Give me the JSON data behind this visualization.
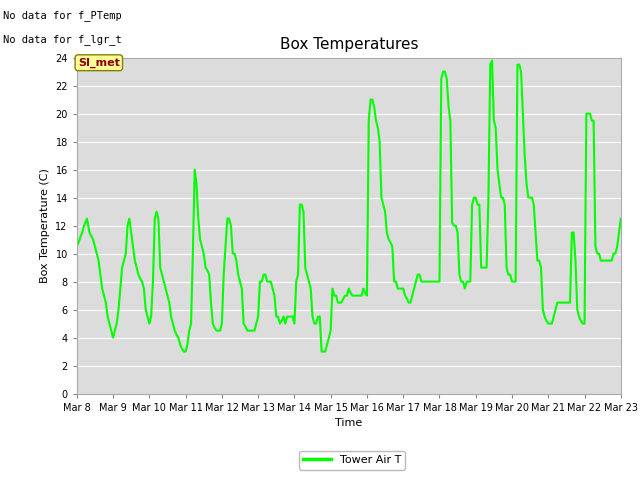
{
  "title": "Box Temperatures",
  "xlabel": "Time",
  "ylabel": "Box Temperature (C)",
  "ylim": [
    0,
    24
  ],
  "xlim": [
    0,
    15
  ],
  "background_color": "#dcdcdc",
  "line_color": "#00ff00",
  "line_width": 1.5,
  "x_tick_labels": [
    "Mar 8",
    "Mar 9",
    "Mar 10",
    "Mar 11",
    "Mar 12",
    "Mar 13",
    "Mar 14",
    "Mar 15",
    "Mar 16",
    "Mar 17",
    "Mar 18",
    "Mar 19",
    "Mar 20",
    "Mar 21",
    "Mar 22",
    "Mar 23"
  ],
  "y_ticks": [
    0,
    2,
    4,
    6,
    8,
    10,
    12,
    14,
    16,
    18,
    20,
    22,
    24
  ],
  "no_data_texts": [
    "No data for f_PTemp",
    "No data for f_lgr_t"
  ],
  "si_met_label": "SI_met",
  "legend_label": "Tower Air T",
  "data_x": [
    0.0,
    0.05,
    0.1,
    0.15,
    0.2,
    0.28,
    0.35,
    0.45,
    0.5,
    0.55,
    0.6,
    0.65,
    0.7,
    0.75,
    0.8,
    0.85,
    0.9,
    0.95,
    1.0,
    1.05,
    1.1,
    1.15,
    1.2,
    1.25,
    1.3,
    1.35,
    1.4,
    1.45,
    1.5,
    1.55,
    1.6,
    1.65,
    1.7,
    1.75,
    1.8,
    1.85,
    1.9,
    1.95,
    2.0,
    2.05,
    2.1,
    2.15,
    2.2,
    2.25,
    2.3,
    2.35,
    2.4,
    2.45,
    2.5,
    2.55,
    2.6,
    2.65,
    2.7,
    2.75,
    2.8,
    2.85,
    2.9,
    2.95,
    3.0,
    3.05,
    3.1,
    3.15,
    3.2,
    3.25,
    3.3,
    3.35,
    3.4,
    3.45,
    3.5,
    3.55,
    3.6,
    3.65,
    3.7,
    3.75,
    3.8,
    3.85,
    3.9,
    3.95,
    4.0,
    4.05,
    4.1,
    4.15,
    4.2,
    4.25,
    4.3,
    4.35,
    4.4,
    4.45,
    4.5,
    4.55,
    4.6,
    4.65,
    4.7,
    4.75,
    4.8,
    4.85,
    4.9,
    4.95,
    5.0,
    5.05,
    5.1,
    5.15,
    5.2,
    5.25,
    5.3,
    5.35,
    5.4,
    5.45,
    5.5,
    5.55,
    5.6,
    5.65,
    5.7,
    5.75,
    5.8,
    5.85,
    5.9,
    5.95,
    6.0,
    6.05,
    6.1,
    6.15,
    6.2,
    6.25,
    6.3,
    6.35,
    6.4,
    6.45,
    6.5,
    6.55,
    6.6,
    6.65,
    6.7,
    6.75,
    6.8,
    6.85,
    6.9,
    6.95,
    7.0,
    7.05,
    7.1,
    7.15,
    7.2,
    7.25,
    7.3,
    7.35,
    7.4,
    7.45,
    7.5,
    7.55,
    7.6,
    7.65,
    7.7,
    7.75,
    7.8,
    7.85,
    7.9,
    7.95,
    8.0,
    8.05,
    8.1,
    8.15,
    8.2,
    8.25,
    8.3,
    8.35,
    8.4,
    8.45,
    8.5,
    8.55,
    8.6,
    8.65,
    8.7,
    8.75,
    8.8,
    8.85,
    8.9,
    8.95,
    9.0,
    9.05,
    9.1,
    9.15,
    9.2,
    9.25,
    9.3,
    9.35,
    9.4,
    9.45,
    9.5,
    9.55,
    9.6,
    9.65,
    9.7,
    9.75,
    9.8,
    9.85,
    9.9,
    9.95,
    10.0,
    10.05,
    10.1,
    10.15,
    10.2,
    10.25,
    10.3,
    10.35,
    10.4,
    10.45,
    10.5,
    10.55,
    10.6,
    10.65,
    10.7,
    10.75,
    10.8,
    10.85,
    10.9,
    10.95,
    11.0,
    11.05,
    11.1,
    11.15,
    11.2,
    11.25,
    11.3,
    11.35,
    11.4,
    11.45,
    11.5,
    11.55,
    11.6,
    11.65,
    11.7,
    11.75,
    11.8,
    11.85,
    11.9,
    11.95,
    12.0,
    12.05,
    12.1,
    12.15,
    12.2,
    12.25,
    12.3,
    12.35,
    12.4,
    12.45,
    12.5,
    12.55,
    12.6,
    12.65,
    12.7,
    12.75,
    12.8,
    12.85,
    12.9,
    12.95,
    13.0,
    13.05,
    13.1,
    13.15,
    13.2,
    13.25,
    13.3,
    13.35,
    13.4,
    13.45,
    13.5,
    13.55,
    13.6,
    13.65,
    13.7,
    13.75,
    13.8,
    13.85,
    13.9,
    13.95,
    14.0,
    14.05,
    14.1,
    14.15,
    14.2,
    14.25,
    14.3,
    14.35,
    14.4,
    14.45,
    14.5,
    14.55,
    14.6,
    14.65,
    14.7,
    14.75,
    14.8,
    14.85,
    14.9,
    14.95,
    15.0
  ],
  "data_y": [
    10.5,
    10.8,
    11.2,
    11.5,
    12.0,
    12.5,
    11.5,
    11.0,
    10.5,
    10.0,
    9.5,
    8.5,
    7.5,
    7.0,
    6.5,
    5.5,
    5.0,
    4.5,
    4.0,
    4.5,
    5.0,
    6.0,
    7.5,
    9.0,
    9.5,
    10.0,
    12.0,
    12.5,
    11.5,
    10.5,
    9.5,
    9.0,
    8.5,
    8.2,
    8.0,
    7.5,
    6.0,
    5.5,
    5.0,
    5.5,
    8.0,
    12.5,
    13.0,
    12.5,
    9.0,
    8.5,
    8.0,
    7.5,
    7.0,
    6.5,
    5.5,
    5.0,
    4.5,
    4.2,
    4.0,
    3.5,
    3.2,
    3.0,
    3.0,
    3.5,
    4.5,
    5.0,
    10.0,
    16.0,
    15.0,
    12.5,
    11.0,
    10.5,
    10.0,
    9.0,
    8.8,
    8.5,
    6.5,
    5.0,
    4.7,
    4.5,
    4.5,
    4.5,
    5.0,
    8.5,
    10.5,
    12.5,
    12.5,
    12.0,
    10.0,
    10.0,
    9.5,
    8.5,
    8.0,
    7.5,
    5.0,
    4.8,
    4.5,
    4.5,
    4.5,
    4.5,
    4.5,
    5.0,
    5.5,
    8.0,
    8.0,
    8.5,
    8.5,
    8.0,
    8.0,
    8.0,
    7.5,
    7.0,
    5.5,
    5.5,
    5.0,
    5.2,
    5.5,
    5.0,
    5.5,
    5.5,
    5.5,
    5.5,
    5.0,
    8.0,
    8.5,
    13.5,
    13.5,
    13.0,
    9.0,
    8.5,
    8.0,
    7.5,
    5.5,
    5.0,
    5.0,
    5.5,
    5.5,
    3.0,
    3.0,
    3.0,
    3.5,
    4.0,
    4.5,
    7.5,
    7.0,
    7.0,
    6.5,
    6.5,
    6.5,
    6.8,
    7.0,
    7.0,
    7.5,
    7.2,
    7.0,
    7.0,
    7.0,
    7.0,
    7.0,
    7.0,
    7.5,
    7.2,
    7.0,
    19.5,
    21.0,
    21.0,
    20.5,
    19.5,
    19.0,
    18.0,
    14.0,
    13.5,
    13.0,
    11.5,
    11.0,
    10.8,
    10.5,
    8.0,
    8.0,
    7.5,
    7.5,
    7.5,
    7.5,
    7.0,
    6.8,
    6.5,
    6.5,
    7.0,
    7.5,
    8.0,
    8.5,
    8.5,
    8.0,
    8.0,
    8.0,
    8.0,
    8.0,
    8.0,
    8.0,
    8.0,
    8.0,
    8.0,
    8.0,
    22.5,
    23.0,
    23.0,
    22.5,
    20.5,
    19.5,
    12.2,
    12.0,
    12.0,
    11.5,
    8.5,
    8.0,
    8.0,
    7.5,
    8.0,
    8.0,
    8.0,
    13.5,
    14.0,
    14.0,
    13.5,
    13.5,
    9.0,
    9.0,
    9.0,
    9.0,
    14.0,
    23.5,
    23.8,
    19.5,
    19.0,
    16.0,
    15.0,
    14.0,
    14.0,
    13.5,
    9.0,
    8.5,
    8.5,
    8.0,
    8.0,
    8.0,
    23.5,
    23.5,
    23.0,
    20.0,
    17.0,
    15.0,
    14.0,
    14.0,
    14.0,
    13.5,
    11.5,
    9.5,
    9.5,
    9.0,
    6.0,
    5.5,
    5.2,
    5.0,
    5.0,
    5.0,
    5.5,
    6.0,
    6.5,
    6.5,
    6.5,
    6.5,
    6.5,
    6.5,
    6.5,
    6.5,
    11.5,
    11.5,
    9.5,
    6.0,
    5.5,
    5.2,
    5.0,
    5.0,
    20.0,
    20.0,
    20.0,
    19.5,
    19.5,
    10.5,
    10.0,
    10.0,
    9.5,
    9.5,
    9.5,
    9.5,
    9.5,
    9.5,
    9.5,
    10.0,
    10.0,
    10.5,
    11.5,
    12.5
  ]
}
